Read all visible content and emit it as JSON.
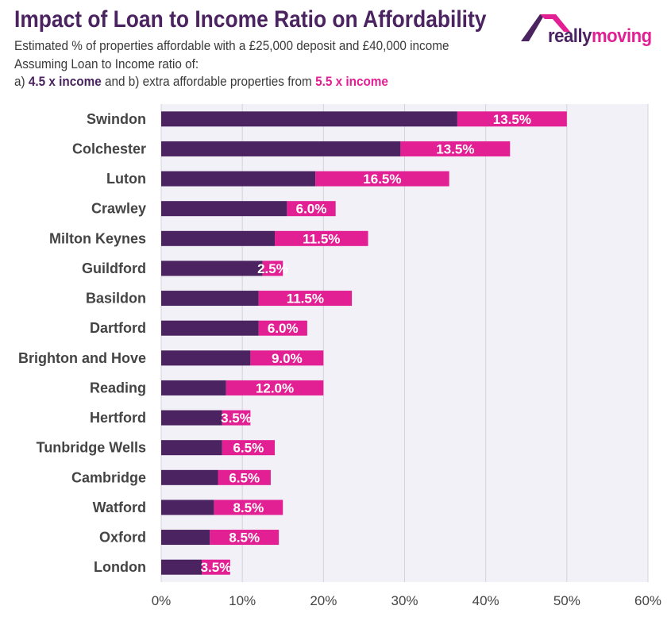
{
  "header": {
    "title": "Impact of Loan to Income Ratio on Affordability",
    "subtitle_line1": "Estimated % of properties affordable with a £25,000 deposit and £40,000 income",
    "subtitle_line2": "Assuming Loan to Income ratio of:",
    "subtitle_line3_prefix": " a)",
    "subtitle_line3_series1": "4.5 x income",
    "subtitle_line3_middle": "and b) extra affordable properties from",
    "subtitle_line3_series2": "5.5 x income"
  },
  "logo": {
    "text_part1": "really",
    "text_part2": "moving"
  },
  "colors": {
    "series1": "#4a2360",
    "series2": "#e21f93",
    "grid": "#d3d3dc",
    "plot_background": "#f1f1f7",
    "axis_text": "#444444"
  },
  "chart_data": {
    "type": "bar",
    "orientation": "horizontal",
    "stacked": true,
    "categories": [
      "Swindon",
      "Colchester",
      "Luton",
      "Crawley",
      "Milton Keynes",
      "Guildford",
      "Basildon",
      "Dartford",
      "Brighton and Hove",
      "Reading",
      "Hertford",
      "Tunbridge Wells",
      "Cambridge",
      "Watford",
      "Oxford",
      "London"
    ],
    "series": [
      {
        "values": [
          36.5,
          29.5,
          19.0,
          15.5,
          14.0,
          12.5,
          12.0,
          12.0,
          11.0,
          8.0,
          7.5,
          7.5,
          7.0,
          6.5,
          6.0,
          5.0
        ]
      },
      {
        "values": [
          13.5,
          13.5,
          16.5,
          6.0,
          11.5,
          2.5,
          11.5,
          6.0,
          9.0,
          12.0,
          3.5,
          6.5,
          6.5,
          8.5,
          8.5,
          3.5
        ]
      }
    ],
    "data_labels": [
      "13.5%",
      "13.5%",
      "16.5%",
      "6.0%",
      "11.5%",
      "2.5%",
      "11.5%",
      "6.0%",
      "9.0%",
      "12.0%",
      "3.5%",
      "6.5%",
      "6.5%",
      "8.5%",
      "8.5%",
      "3.5%"
    ],
    "x_ticks": [
      "0%",
      "10%",
      "20%",
      "30%",
      "40%",
      "50%",
      "60%"
    ],
    "xlim": [
      0,
      60
    ],
    "grid": true,
    "legend": "none"
  }
}
